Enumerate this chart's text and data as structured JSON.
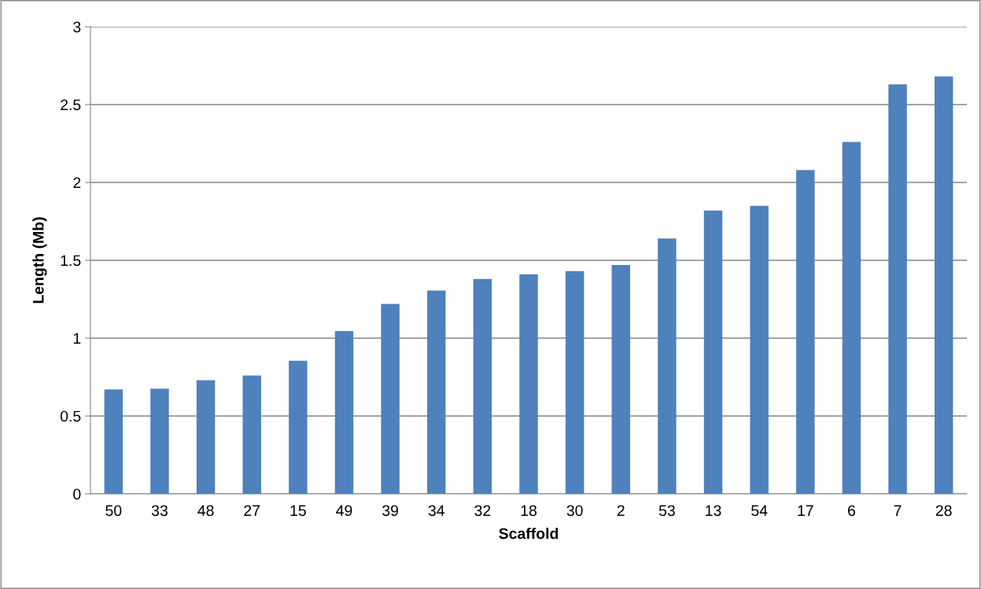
{
  "chart_data": {
    "type": "bar",
    "xlabel": "Scaffold",
    "ylabel": "Length (Mb)",
    "categories": [
      "50",
      "33",
      "48",
      "27",
      "15",
      "49",
      "39",
      "34",
      "32",
      "18",
      "30",
      "2",
      "53",
      "13",
      "54",
      "17",
      "6",
      "7",
      "28"
    ],
    "values": [
      0.67,
      0.675,
      0.73,
      0.76,
      0.855,
      1.045,
      1.22,
      1.305,
      1.38,
      1.41,
      1.43,
      1.47,
      1.64,
      1.82,
      1.85,
      2.08,
      2.26,
      2.63,
      2.68
    ],
    "color": "#4f81bd",
    "ylim": [
      0,
      3
    ],
    "yticks": [
      0,
      0.5,
      1,
      1.5,
      2,
      2.5,
      3
    ],
    "grid": "y",
    "legend": false
  }
}
